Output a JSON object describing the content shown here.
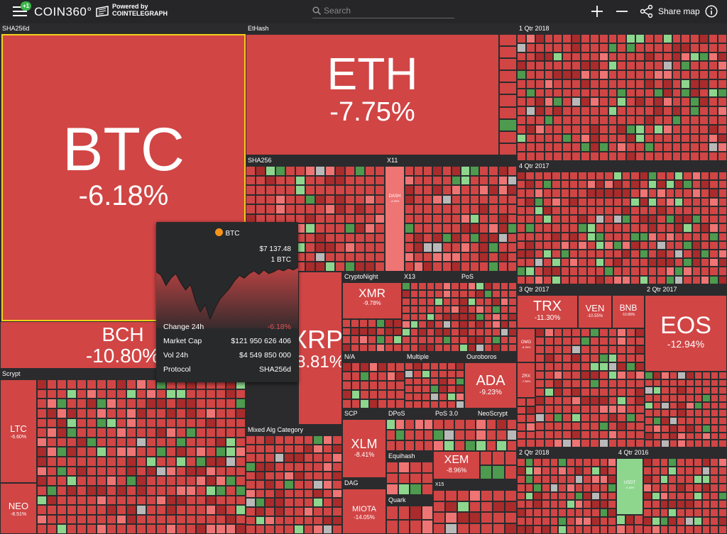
{
  "header": {
    "notification_badge": "+1",
    "logo": "COIN360°",
    "powered_by": "Powered by",
    "powered_brand": "COINTELEGRAPH",
    "search_placeholder": "Search",
    "share_label": "Share map",
    "icons": [
      "menu-icon",
      "search-icon",
      "plus-icon",
      "minus-icon",
      "share-icon",
      "info-icon"
    ]
  },
  "colors": {
    "background": "#2b2b2d",
    "tile_red": "#d14545",
    "tile_dark_red": "#a92b2b",
    "tile_light_red": "#ef7474",
    "tile_green": "#4e9a4e",
    "tile_light_green": "#8ed68e",
    "tile_gray": "#b9b9b9",
    "selected_outline": "#f2d21a",
    "tooltip_negative": "#e35555",
    "btc_orange": "#f7931a"
  },
  "groups": {
    "sha256d": "SHA256d",
    "ethash": "EtHash",
    "qtr1_2018": "1 Qtr 2018",
    "sha256": "SHA256",
    "x11": "X11",
    "qtr4_2017": "4 Qtr 2017",
    "cryptonight": "CryptoNight",
    "x13": "X13",
    "pos": "PoS",
    "qtr3_2017": "3 Qtr 2017",
    "qtr2_2017": "2 Qtr 2017",
    "scrypt": "Scrypt",
    "na": "N/A",
    "multiple": "Multiple",
    "ouroboros": "Ouroboros",
    "mixed_alg": "Mixed Alg Category",
    "scp": "SCP",
    "dpos": "DPoS",
    "pos30": "PoS 3.0",
    "neoscrypt": "NeoScrypt",
    "equihash": "Equihash",
    "dag": "DAG",
    "x15": "X15",
    "quark": "Quark",
    "qtr2_2018": "2 Qtr 2018",
    "qtr4_2016": "4 Qtr 2016"
  },
  "coins": {
    "btc": {
      "symbol": "BTC",
      "change": "-6.18%"
    },
    "eth": {
      "symbol": "ETH",
      "change": "-7.75%"
    },
    "bch": {
      "symbol": "BCH",
      "change": "-10.80%"
    },
    "xrp": {
      "symbol": "XRP",
      "change": "-8.81%"
    },
    "xmr": {
      "symbol": "XMR",
      "change": "-9.78%"
    },
    "dash": {
      "symbol": "DASH",
      "change": "-4.39%"
    },
    "trx": {
      "symbol": "TRX",
      "change": "-11.30%"
    },
    "ven": {
      "symbol": "VEN",
      "change": "-10.55%"
    },
    "bnb": {
      "symbol": "BNB",
      "change": "-10.88%"
    },
    "omg": {
      "symbol": "OMG",
      "change": "-8.35%"
    },
    "zrx": {
      "symbol": "ZRX",
      "change": "-7.88%"
    },
    "eos": {
      "symbol": "EOS",
      "change": "-12.94%"
    },
    "ada": {
      "symbol": "ADA",
      "change": "-9.23%"
    },
    "ltc": {
      "symbol": "LTC",
      "change": "-6.60%"
    },
    "neo": {
      "symbol": "NEO",
      "change": "-8.51%"
    },
    "xlm": {
      "symbol": "XLM",
      "change": "-8.41%"
    },
    "xem": {
      "symbol": "XEM",
      "change": "-8.96%"
    },
    "miota": {
      "symbol": "MIOTA",
      "change": "-14.05%"
    },
    "usdt": {
      "symbol": "USDT",
      "change": "-0.48%"
    }
  },
  "tooltip": {
    "coin": "BTC",
    "coin_icon": "bitcoin-icon",
    "price": "$7 137.48",
    "amount": "1 BTC",
    "rows": [
      {
        "label": "Change 24h",
        "value": "-6.18%"
      },
      {
        "label": "Market Cap",
        "value": "$121 950 626 406"
      },
      {
        "label": "Vol 24h",
        "value": "$4 549 850 000"
      },
      {
        "label": "Protocol",
        "value": "SHA256d"
      }
    ],
    "sparkline": [
      62,
      58,
      47,
      55,
      60,
      50,
      42,
      48,
      30,
      18,
      26,
      10,
      22,
      32,
      38,
      44,
      52,
      58,
      55,
      60,
      63,
      59,
      64,
      60,
      62,
      65,
      63,
      66,
      64,
      67
    ]
  }
}
